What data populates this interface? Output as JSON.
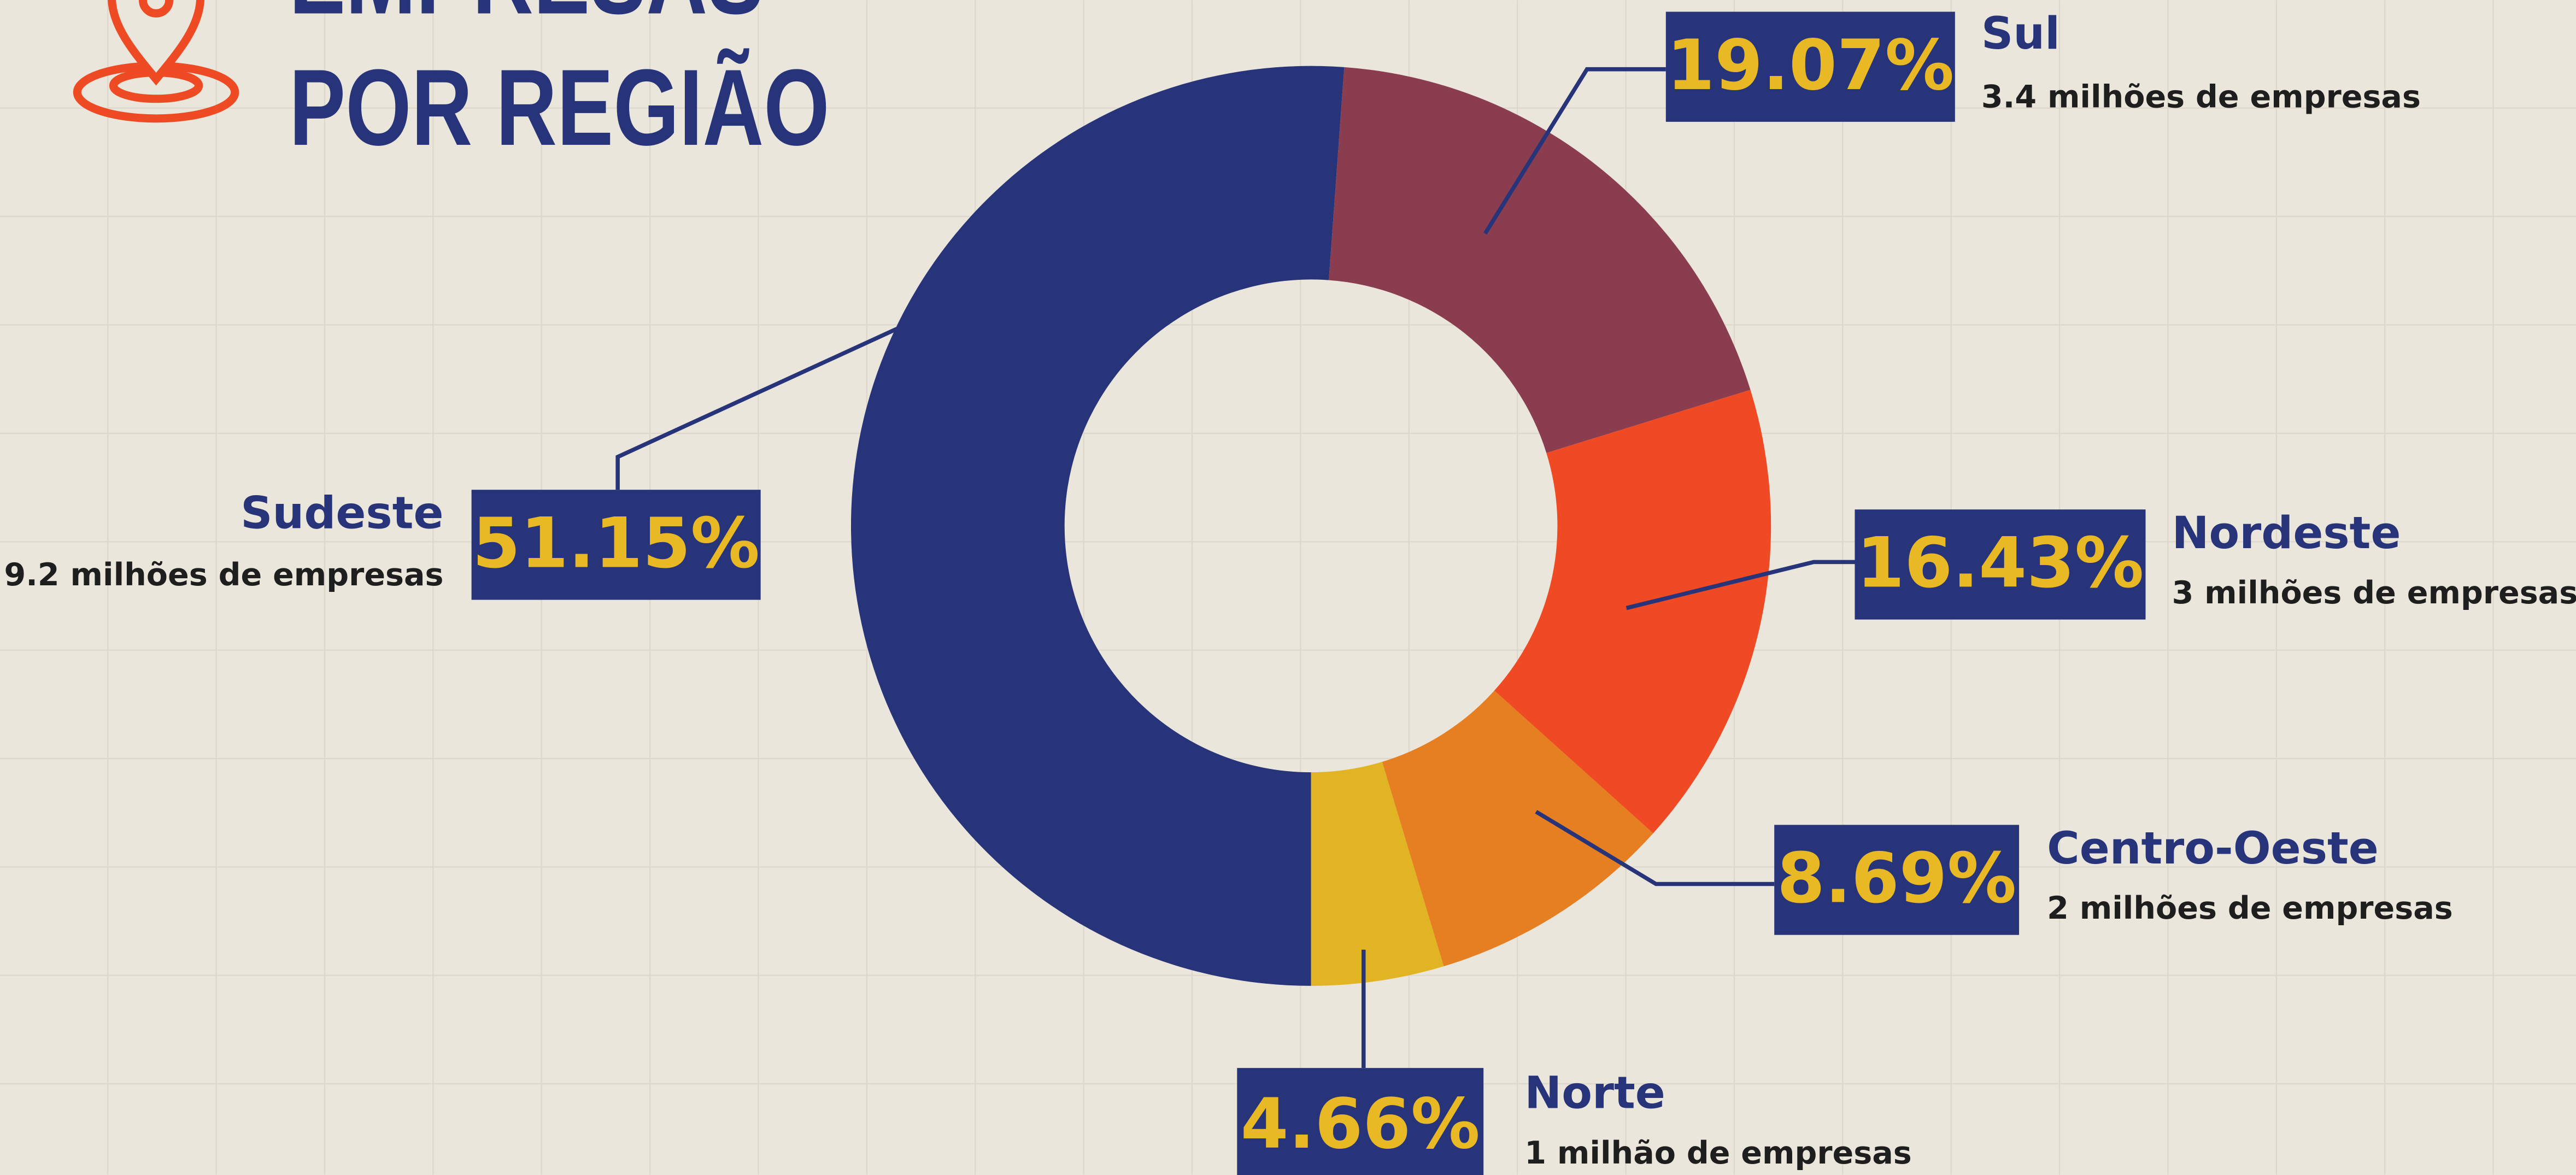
{
  "chart_data": {
    "type": "donut",
    "title": [
      "EMPRESAS",
      "POR REGIÃO"
    ],
    "categories": [
      "Sul",
      "Nordeste",
      "Centro-Oeste",
      "Norte",
      "Sudeste"
    ],
    "values": [
      19.07,
      16.43,
      8.69,
      4.66,
      51.15
    ],
    "value_labels": [
      "19.07%",
      "16.43%",
      "8.69%",
      "4.66%",
      "51.15%"
    ],
    "descriptions": [
      "3.4 milhões de empresas",
      "3 milhões de empresas",
      "2 milhões de empresas",
      "1 milhão de empresas",
      "9.2 milhões de empresas"
    ],
    "colors": [
      "#8b3d50",
      "#ef4a23",
      "#e67e22",
      "#e0b422",
      "#283479"
    ]
  }
}
